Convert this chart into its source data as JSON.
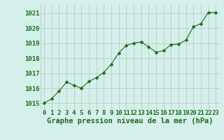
{
  "x": [
    0,
    1,
    2,
    3,
    4,
    5,
    6,
    7,
    8,
    9,
    10,
    11,
    12,
    13,
    14,
    15,
    16,
    17,
    18,
    19,
    20,
    21,
    22,
    23
  ],
  "y": [
    1015.0,
    1015.3,
    1015.8,
    1016.4,
    1016.2,
    1016.0,
    1016.45,
    1016.7,
    1017.05,
    1017.6,
    1018.35,
    1018.85,
    1019.0,
    1019.1,
    1018.75,
    1018.4,
    1018.5,
    1018.9,
    1018.95,
    1019.2,
    1020.1,
    1020.3,
    1021.05,
    1021.05
  ],
  "line_color": "#1e6b1e",
  "marker": "D",
  "marker_size": 2.5,
  "bg_color": "#d5f0ea",
  "grid_color": "#b8ccc8",
  "xlabel": "Graphe pression niveau de la mer (hPa)",
  "xlabel_color": "#1e6b1e",
  "xlabel_fontsize": 7.5,
  "tick_label_color": "#1e6b1e",
  "tick_fontsize": 6.5,
  "ylim": [
    1014.6,
    1021.6
  ],
  "yticks": [
    1015,
    1016,
    1017,
    1018,
    1019,
    1020,
    1021
  ],
  "xticks": [
    0,
    1,
    2,
    3,
    4,
    5,
    6,
    7,
    8,
    9,
    10,
    11,
    12,
    13,
    14,
    15,
    16,
    17,
    18,
    19,
    20,
    21,
    22,
    23
  ]
}
